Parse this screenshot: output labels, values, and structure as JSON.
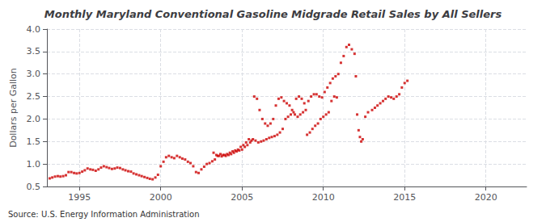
{
  "chart_data": {
    "type": "scatter",
    "title": "Monthly Maryland Conventional Gasoline Midgrade Retail Sales by All Sellers",
    "ylabel": "Dollars per Gallon",
    "source": "Source: U.S. Energy Information Administration",
    "color": "#cc0000",
    "marker": "square",
    "grid": true,
    "xlim": [
      1993.0,
      2022.5
    ],
    "ylim": [
      0.5,
      4.0
    ],
    "xticks": [
      1995,
      2000,
      2005,
      2010,
      2015,
      2020
    ],
    "yticks": [
      0.5,
      {
        "value": 1.0,
        "label": "1.0"
      },
      1.5,
      {
        "value": 2.0,
        "label": "2.0"
      },
      2.5,
      {
        "value": 3.0,
        "label": "3.0"
      },
      3.5,
      {
        "value": 4.0,
        "label": "4.0"
      }
    ],
    "x": [
      1993.17,
      1993.33,
      1993.5,
      1993.67,
      1993.83,
      1994.0,
      1994.17,
      1994.33,
      1994.5,
      1994.67,
      1994.83,
      1995.0,
      1995.17,
      1995.33,
      1995.5,
      1995.67,
      1995.83,
      1996.0,
      1996.17,
      1996.33,
      1996.5,
      1996.67,
      1996.83,
      1997.0,
      1997.17,
      1997.33,
      1997.5,
      1997.67,
      1997.83,
      1998.0,
      1998.17,
      1998.33,
      1998.5,
      1998.67,
      1998.83,
      1999.0,
      1999.17,
      1999.33,
      1999.5,
      1999.67,
      1999.83,
      2000.0,
      2000.17,
      2000.33,
      2000.5,
      2000.67,
      2000.83,
      2001.0,
      2001.17,
      2001.33,
      2001.5,
      2001.67,
      2001.83,
      2002.0,
      2002.17,
      2002.33,
      2002.5,
      2002.67,
      2002.83,
      2003.0,
      2003.17,
      2003.33,
      2003.5,
      2003.67,
      2003.83,
      2004.0,
      2004.17,
      2004.33,
      2004.5,
      2004.67,
      2004.83,
      2005.0,
      2005.17,
      2005.33,
      2005.5,
      2005.67,
      2005.83,
      2006.0,
      2006.17,
      2006.33,
      2006.5,
      2006.67,
      2006.83,
      2007.0,
      2007.17,
      2007.33,
      2007.5,
      2007.67,
      2007.83,
      2008.0,
      2008.17,
      2008.33,
      2008.5,
      2008.67,
      2008.83,
      2009.0,
      2009.17,
      2009.33,
      2009.5,
      2009.67,
      2009.83,
      2010.0,
      2010.17,
      2010.33,
      2010.5,
      2010.67,
      2010.83,
      2003.25,
      2003.42,
      2003.58,
      2003.75,
      2003.92,
      2004.08,
      2004.25,
      2004.42,
      2004.58,
      2004.75,
      2004.92,
      2005.08,
      2005.25,
      2005.42,
      2005.58,
      2005.75,
      2005.92,
      2006.08,
      2006.25,
      2006.42,
      2006.58,
      2006.75,
      2006.92,
      2007.08,
      2007.25,
      2007.42,
      2007.58,
      2007.75,
      2007.92,
      2008.08,
      2008.25,
      2008.42,
      2008.58,
      2008.75,
      2008.92,
      2009.08,
      2009.25,
      2009.42,
      2009.58,
      2009.75,
      2009.92,
      2010.08,
      2010.25,
      2010.42,
      2010.58,
      2010.75,
      2010.92,
      2011.08,
      2011.25,
      2011.42,
      2011.58,
      2011.75,
      2011.92,
      2012.0,
      2012.08,
      2012.17,
      2012.25,
      2012.33,
      2012.42,
      2012.58,
      2012.75,
      2013.0,
      2013.17,
      2013.33,
      2013.5,
      2013.67,
      2013.83,
      2014.0,
      2014.17,
      2014.33,
      2014.5,
      2014.67,
      2014.83,
      2015.0,
      2015.17
    ],
    "values": [
      0.68,
      0.7,
      0.72,
      0.73,
      0.72,
      0.73,
      0.75,
      0.82,
      0.82,
      0.8,
      0.79,
      0.8,
      0.83,
      0.86,
      0.9,
      0.88,
      0.87,
      0.85,
      0.88,
      0.92,
      0.95,
      0.93,
      0.91,
      0.89,
      0.9,
      0.92,
      0.91,
      0.88,
      0.86,
      0.84,
      0.83,
      0.79,
      0.77,
      0.75,
      0.73,
      0.71,
      0.69,
      0.67,
      0.66,
      0.7,
      0.76,
      0.95,
      1.05,
      1.15,
      1.18,
      1.15,
      1.13,
      1.18,
      1.15,
      1.12,
      1.1,
      1.05,
      1.02,
      0.95,
      0.82,
      0.8,
      0.88,
      0.94,
      1.0,
      1.02,
      1.06,
      1.1,
      1.18,
      1.22,
      1.2,
      1.18,
      1.2,
      1.22,
      1.25,
      1.28,
      1.3,
      1.32,
      1.38,
      1.42,
      1.48,
      1.55,
      1.52,
      1.48,
      1.5,
      1.52,
      1.55,
      1.58,
      1.6,
      1.62,
      1.65,
      1.7,
      1.78,
      2.0,
      2.05,
      2.1,
      2.15,
      2.45,
      2.5,
      2.45,
      2.35,
      1.65,
      1.7,
      1.78,
      1.85,
      1.9,
      2.0,
      2.05,
      2.1,
      2.15,
      2.4,
      2.5,
      2.48,
      1.25,
      1.2,
      1.18,
      1.17,
      1.2,
      1.22,
      1.25,
      1.28,
      1.3,
      1.32,
      1.38,
      1.42,
      1.48,
      1.55,
      1.52,
      2.5,
      2.45,
      2.2,
      2.0,
      1.9,
      1.85,
      1.9,
      2.0,
      2.3,
      2.45,
      2.48,
      2.4,
      2.35,
      2.3,
      2.2,
      2.1,
      2.05,
      2.1,
      2.15,
      2.2,
      2.4,
      2.5,
      2.55,
      2.55,
      2.5,
      2.48,
      2.6,
      2.7,
      2.8,
      2.9,
      2.95,
      3.0,
      3.25,
      3.4,
      3.6,
      3.65,
      3.55,
      3.45,
      2.95,
      2.1,
      1.75,
      1.6,
      1.5,
      1.55,
      2.05,
      2.15,
      2.2,
      2.25,
      2.3,
      2.35,
      2.4,
      2.45,
      2.5,
      2.48,
      2.45,
      2.5,
      2.55,
      2.7,
      2.8,
      2.85
    ]
  }
}
